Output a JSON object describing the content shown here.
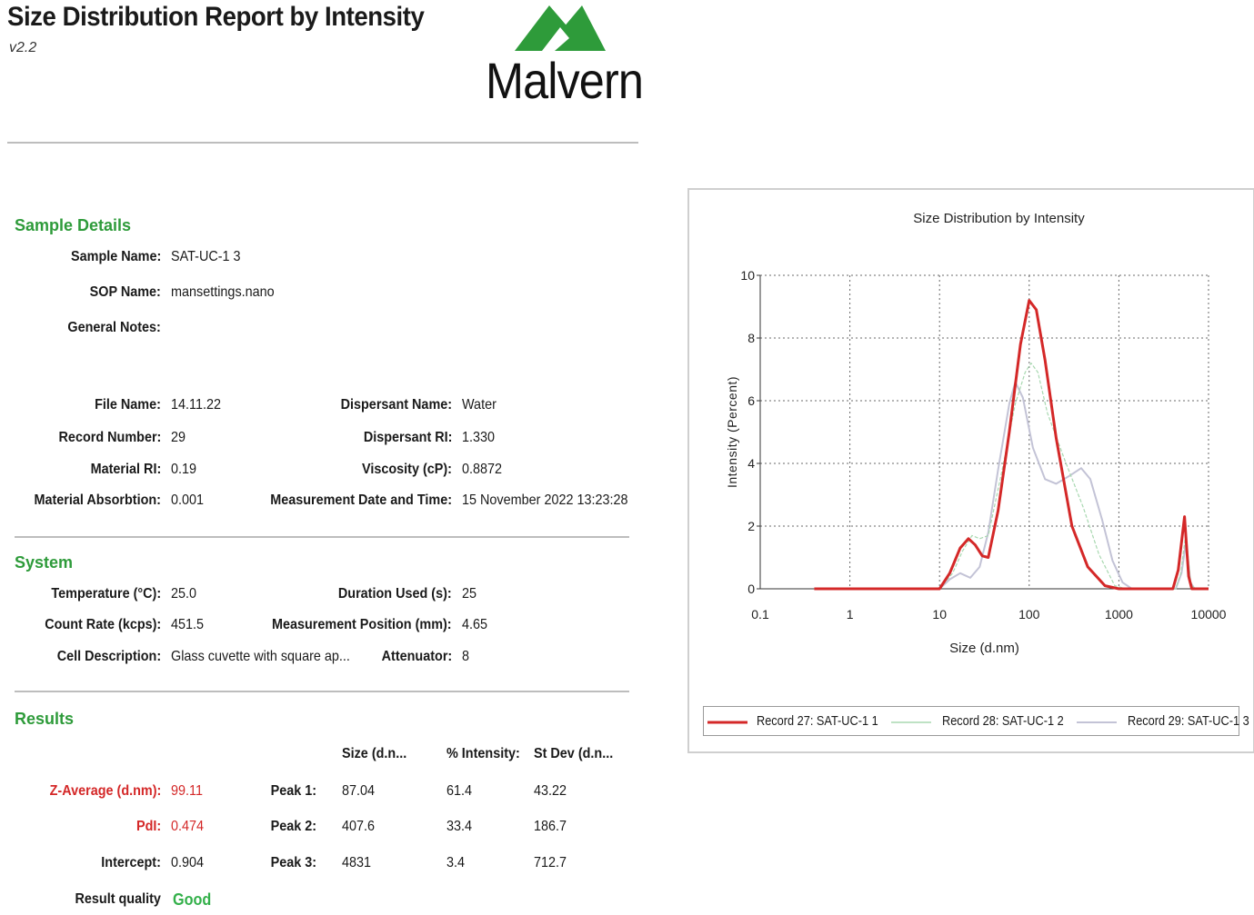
{
  "header": {
    "title": "Size Distribution Report by Intensity",
    "version": "v2.2",
    "logo_text": "Malvern"
  },
  "sample_details": {
    "heading": "Sample Details",
    "sample_name_label": "Sample Name:",
    "sample_name": "SAT-UC-1 3",
    "sop_name_label": "SOP Name:",
    "sop_name": "mansettings.nano",
    "general_notes_label": "General Notes:",
    "general_notes": "",
    "file_name_label": "File Name:",
    "file_name": "14.11.22",
    "record_number_label": "Record Number:",
    "record_number": "29",
    "material_ri_label": "Material RI:",
    "material_ri": "0.19",
    "material_absorbtion_label": "Material Absorbtion:",
    "material_absorbtion": "0.001",
    "dispersant_name_label": "Dispersant Name:",
    "dispersant_name": "Water",
    "dispersant_ri_label": "Dispersant RI:",
    "dispersant_ri": "1.330",
    "viscosity_label": "Viscosity (cP):",
    "viscosity": "0.8872",
    "measurement_date_label": "Measurement Date and Time:",
    "measurement_date": "15 November 2022 13:23:28"
  },
  "system": {
    "heading": "System",
    "temperature_label": "Temperature (°C):",
    "temperature": "25.0",
    "count_rate_label": "Count Rate (kcps):",
    "count_rate": "451.5",
    "cell_description_label": "Cell Description:",
    "cell_description": "Glass cuvette with square ap...",
    "duration_label": "Duration Used (s):",
    "duration": "25",
    "measurement_position_label": "Measurement Position (mm):",
    "measurement_position": "4.65",
    "attenuator_label": "Attenuator:",
    "attenuator": "8"
  },
  "results": {
    "heading": "Results",
    "col_size": "Size (d.n...",
    "col_intensity": "% Intensity:",
    "col_stdev": "St Dev (d.n...",
    "z_average_label": "Z-Average (d.nm):",
    "z_average": "99.11",
    "pdi_label": "PdI:",
    "pdi": "0.474",
    "intercept_label": "Intercept:",
    "intercept": "0.904",
    "result_quality_label": "Result quality",
    "result_quality": "Good",
    "peaks": [
      {
        "label": "Peak 1:",
        "size": "87.04",
        "intensity": "61.4",
        "stdev": "43.22"
      },
      {
        "label": "Peak 2:",
        "size": "407.6",
        "intensity": "33.4",
        "stdev": "186.7"
      },
      {
        "label": "Peak 3:",
        "size": "4831",
        "intensity": "3.4",
        "stdev": "712.7"
      }
    ]
  },
  "colors": {
    "section_heading": "#2e9b3a",
    "record_27": "#d42828",
    "record_28": "#a8d8b0",
    "record_29": "#c3c3d6",
    "logo": "#2e9b3a"
  },
  "chart_data": {
    "type": "line",
    "title": "Size Distribution by Intensity",
    "xlabel": "Size (d.nm)",
    "ylabel": "Intensity (Percent)",
    "xscale": "log",
    "xlim": [
      0.1,
      10000
    ],
    "ylim": [
      0,
      10
    ],
    "xticks": [
      "0.1",
      "1",
      "10",
      "100",
      "1000",
      "10000"
    ],
    "yticks": [
      "0",
      "2",
      "4",
      "6",
      "8",
      "10"
    ],
    "grid": true,
    "legend_position": "bottom",
    "series": [
      {
        "name": "Record 27: SAT-UC-1 1",
        "color": "#d42828",
        "points": [
          [
            0.4,
            0
          ],
          [
            10,
            0
          ],
          [
            13,
            0.5
          ],
          [
            17,
            1.3
          ],
          [
            21,
            1.6
          ],
          [
            25,
            1.4
          ],
          [
            30,
            1.05
          ],
          [
            35,
            1.0
          ],
          [
            45,
            2.5
          ],
          [
            60,
            5.0
          ],
          [
            80,
            7.8
          ],
          [
            100,
            9.2
          ],
          [
            120,
            8.9
          ],
          [
            150,
            7.3
          ],
          [
            200,
            4.8
          ],
          [
            300,
            2.0
          ],
          [
            450,
            0.7
          ],
          [
            700,
            0.1
          ],
          [
            1000,
            0
          ],
          [
            4000,
            0
          ],
          [
            4600,
            0.6
          ],
          [
            5400,
            2.3
          ],
          [
            6000,
            0.4
          ],
          [
            6500,
            0
          ],
          [
            10000,
            0
          ]
        ]
      },
      {
        "name": "Record 28: SAT-UC-1 2",
        "color": "#a8d8b0",
        "points": [
          [
            0.4,
            0
          ],
          [
            10,
            0
          ],
          [
            14,
            0.5
          ],
          [
            18,
            1.2
          ],
          [
            23,
            1.7
          ],
          [
            28,
            1.6
          ],
          [
            35,
            1.7
          ],
          [
            50,
            3.8
          ],
          [
            70,
            5.9
          ],
          [
            90,
            6.9
          ],
          [
            105,
            7.2
          ],
          [
            125,
            6.9
          ],
          [
            160,
            5.6
          ],
          [
            250,
            4.1
          ],
          [
            400,
            2.6
          ],
          [
            600,
            1.1
          ],
          [
            900,
            0.1
          ],
          [
            1200,
            0
          ],
          [
            4300,
            0
          ],
          [
            4900,
            0.5
          ],
          [
            5600,
            1.8
          ],
          [
            6300,
            0.2
          ],
          [
            7000,
            0
          ],
          [
            10000,
            0
          ]
        ]
      },
      {
        "name": "Record 29: SAT-UC-1 3",
        "color": "#c3c3d6",
        "points": [
          [
            0.4,
            0
          ],
          [
            10,
            0
          ],
          [
            13,
            0.3
          ],
          [
            17,
            0.5
          ],
          [
            22,
            0.35
          ],
          [
            28,
            0.7
          ],
          [
            35,
            1.8
          ],
          [
            45,
            3.8
          ],
          [
            60,
            5.9
          ],
          [
            70,
            6.6
          ],
          [
            85,
            6.1
          ],
          [
            110,
            4.5
          ],
          [
            150,
            3.5
          ],
          [
            200,
            3.35
          ],
          [
            280,
            3.6
          ],
          [
            380,
            3.85
          ],
          [
            480,
            3.5
          ],
          [
            650,
            2.2
          ],
          [
            850,
            0.9
          ],
          [
            1100,
            0.2
          ],
          [
            1400,
            0
          ],
          [
            4300,
            0
          ],
          [
            5000,
            0.5
          ],
          [
            5600,
            1.5
          ],
          [
            6300,
            0.2
          ],
          [
            7000,
            0
          ],
          [
            10000,
            0
          ]
        ]
      }
    ]
  }
}
